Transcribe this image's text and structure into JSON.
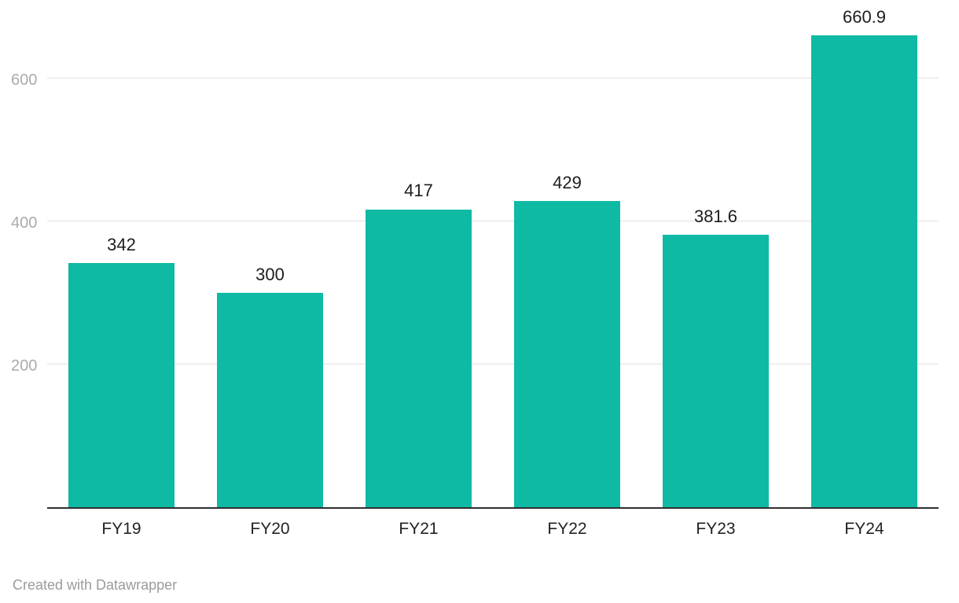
{
  "chart_data": {
    "type": "bar",
    "title": "",
    "categories": [
      "FY19",
      "FY20",
      "FY21",
      "FY22",
      "FY23",
      "FY24"
    ],
    "values": [
      342,
      300,
      417,
      429,
      381.6,
      660.9
    ],
    "value_labels": [
      "342",
      "300",
      "417",
      "429",
      "381.6",
      "660.9"
    ],
    "xlabel": "",
    "ylabel": "",
    "ylim": [
      0,
      660.9
    ],
    "yticks": [
      200,
      400,
      600
    ],
    "grid": true,
    "legend": "none",
    "bar_color": "#0ebaa3",
    "gridline_color": "#e0e0e0",
    "axis_line_color": "#2f2f2f",
    "ytick_color": "#ababab",
    "label_color": "#1d1d1d",
    "attribution": "Created with Datawrapper"
  }
}
